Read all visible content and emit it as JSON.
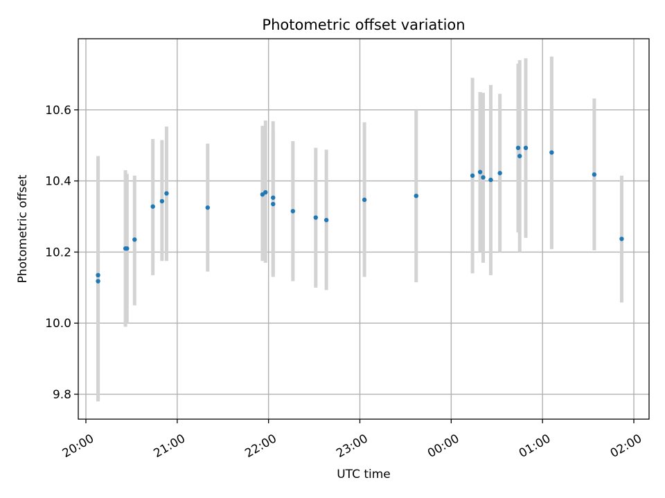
{
  "chart_data": {
    "type": "scatter",
    "title": "Photometric offset variation",
    "xlabel": "UTC time",
    "ylabel": "Photometric offset",
    "grid": true,
    "x_axis": "time",
    "xlim": [
      "2000-01-01T19:55",
      "2000-01-02T02:10"
    ],
    "ylim": [
      9.73,
      10.8
    ],
    "x_ticks": [
      {
        "value": "2000-01-01T20:00",
        "label": "20:00"
      },
      {
        "value": "2000-01-01T21:00",
        "label": "21:00"
      },
      {
        "value": "2000-01-01T22:00",
        "label": "22:00"
      },
      {
        "value": "2000-01-01T23:00",
        "label": "23:00"
      },
      {
        "value": "2000-01-02T00:00",
        "label": "00:00"
      },
      {
        "value": "2000-01-02T01:00",
        "label": "01:00"
      },
      {
        "value": "2000-01-02T02:00",
        "label": "02:00"
      }
    ],
    "y_ticks": [
      {
        "value": 9.8,
        "label": "9.8"
      },
      {
        "value": 10.0,
        "label": "10.0"
      },
      {
        "value": 10.2,
        "label": "10.2"
      },
      {
        "value": 10.4,
        "label": "10.4"
      },
      {
        "value": 10.6,
        "label": "10.6"
      }
    ],
    "colors": {
      "points": "#1f77b4",
      "errorbars": "#d3d3d3",
      "grid": "#b0b0b0"
    },
    "points": [
      {
        "x": "2000-01-01T20:08",
        "y": 10.135,
        "ylow": 9.78,
        "yhigh": 10.47
      },
      {
        "x": "2000-01-01T20:08",
        "y": 10.118,
        "ylow": 9.78,
        "yhigh": 10.46
      },
      {
        "x": "2000-01-01T20:26",
        "y": 10.21,
        "ylow": 9.99,
        "yhigh": 10.43
      },
      {
        "x": "2000-01-01T20:27",
        "y": 10.21,
        "ylow": 10.0,
        "yhigh": 10.42
      },
      {
        "x": "2000-01-01T20:32",
        "y": 10.235,
        "ylow": 10.05,
        "yhigh": 10.415
      },
      {
        "x": "2000-01-01T20:44",
        "y": 10.328,
        "ylow": 10.135,
        "yhigh": 10.518
      },
      {
        "x": "2000-01-01T20:50",
        "y": 10.343,
        "ylow": 10.175,
        "yhigh": 10.515
      },
      {
        "x": "2000-01-01T20:53",
        "y": 10.365,
        "ylow": 10.175,
        "yhigh": 10.553
      },
      {
        "x": "2000-01-01T21:20",
        "y": 10.325,
        "ylow": 10.145,
        "yhigh": 10.505
      },
      {
        "x": "2000-01-01T21:56",
        "y": 10.362,
        "ylow": 10.175,
        "yhigh": 10.555
      },
      {
        "x": "2000-01-01T21:58",
        "y": 10.368,
        "ylow": 10.17,
        "yhigh": 10.57
      },
      {
        "x": "2000-01-01T22:03",
        "y": 10.353,
        "ylow": 10.135,
        "yhigh": 10.568
      },
      {
        "x": "2000-01-01T22:03",
        "y": 10.335,
        "ylow": 10.13,
        "yhigh": 10.54
      },
      {
        "x": "2000-01-01T22:16",
        "y": 10.315,
        "ylow": 10.118,
        "yhigh": 10.512
      },
      {
        "x": "2000-01-01T22:31",
        "y": 10.297,
        "ylow": 10.1,
        "yhigh": 10.493
      },
      {
        "x": "2000-01-01T22:38",
        "y": 10.29,
        "ylow": 10.093,
        "yhigh": 10.488
      },
      {
        "x": "2000-01-01T23:03",
        "y": 10.347,
        "ylow": 10.13,
        "yhigh": 10.565
      },
      {
        "x": "2000-01-01T23:37",
        "y": 10.358,
        "ylow": 10.115,
        "yhigh": 10.6
      },
      {
        "x": "2000-01-02T00:14",
        "y": 10.415,
        "ylow": 10.14,
        "yhigh": 10.69
      },
      {
        "x": "2000-01-02T00:19",
        "y": 10.425,
        "ylow": 10.2,
        "yhigh": 10.65
      },
      {
        "x": "2000-01-02T00:21",
        "y": 10.41,
        "ylow": 10.17,
        "yhigh": 10.648
      },
      {
        "x": "2000-01-02T00:26",
        "y": 10.403,
        "ylow": 10.135,
        "yhigh": 10.67
      },
      {
        "x": "2000-01-02T00:32",
        "y": 10.422,
        "ylow": 10.2,
        "yhigh": 10.645
      },
      {
        "x": "2000-01-02T00:44",
        "y": 10.493,
        "ylow": 10.255,
        "yhigh": 10.73
      },
      {
        "x": "2000-01-02T00:45",
        "y": 10.47,
        "ylow": 10.2,
        "yhigh": 10.74
      },
      {
        "x": "2000-01-02T00:49",
        "y": 10.493,
        "ylow": 10.24,
        "yhigh": 10.745
      },
      {
        "x": "2000-01-02T01:06",
        "y": 10.48,
        "ylow": 10.208,
        "yhigh": 10.75
      },
      {
        "x": "2000-01-02T01:34",
        "y": 10.418,
        "ylow": 10.205,
        "yhigh": 10.632
      },
      {
        "x": "2000-01-02T01:52",
        "y": 10.237,
        "ylow": 10.058,
        "yhigh": 10.415
      }
    ]
  }
}
